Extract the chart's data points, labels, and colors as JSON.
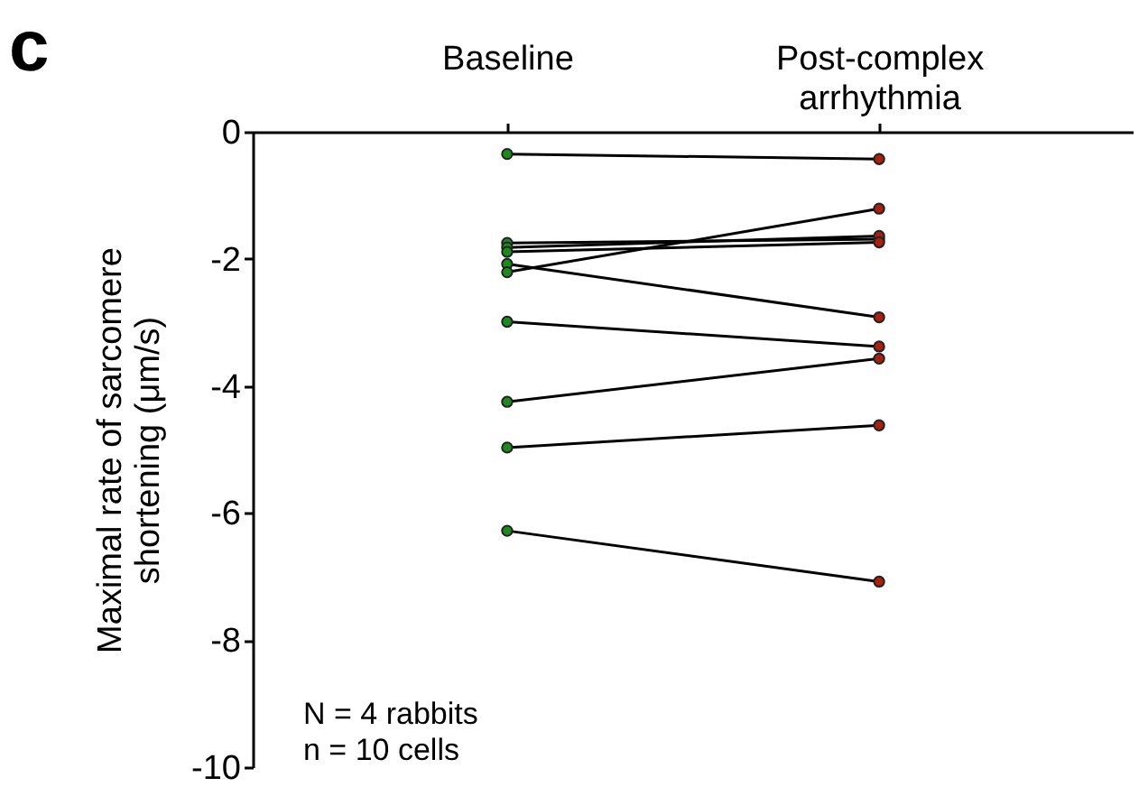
{
  "chart_data": {
    "type": "line",
    "title": "c",
    "ylabel": "Maximal rate of sarcomere shortening (μm/s)",
    "categories": [
      "Baseline",
      "Post-complex arrhythmia"
    ],
    "ylim": [
      -10,
      0
    ],
    "yticks": [
      0,
      -2,
      -4,
      -6,
      -8,
      -10
    ],
    "grid": false,
    "marker": "circle",
    "annotations": [
      "N = 4 rabbits",
      "n = 10 cells"
    ],
    "series": [
      {
        "color": "#000000",
        "colors": [
          "#1e8a1e",
          "#a8200e"
        ],
        "values": [
          -0.35,
          -0.43
        ]
      },
      {
        "color": "#000000",
        "colors": [
          "#1e8a1e",
          "#a8200e"
        ],
        "values": [
          -1.75,
          -1.69
        ]
      },
      {
        "color": "#000000",
        "colors": [
          "#1e8a1e",
          "#a8200e"
        ],
        "values": [
          -1.82,
          -1.64
        ]
      },
      {
        "color": "#000000",
        "colors": [
          "#1e8a1e",
          "#a8200e"
        ],
        "values": [
          -1.89,
          -1.74
        ]
      },
      {
        "color": "#000000",
        "colors": [
          "#1e8a1e",
          "#a8200e"
        ],
        "values": [
          -2.08,
          -2.92
        ]
      },
      {
        "color": "#000000",
        "colors": [
          "#1e8a1e",
          "#a8200e"
        ],
        "values": [
          -2.21,
          -1.21
        ]
      },
      {
        "color": "#000000",
        "colors": [
          "#1e8a1e",
          "#a8200e"
        ],
        "values": [
          -2.99,
          -3.38
        ]
      },
      {
        "color": "#000000",
        "colors": [
          "#1e8a1e",
          "#a8200e"
        ],
        "values": [
          -4.25,
          -3.57
        ]
      },
      {
        "color": "#000000",
        "colors": [
          "#1e8a1e",
          "#a8200e"
        ],
        "values": [
          -4.97,
          -4.62
        ]
      },
      {
        "color": "#000000",
        "colors": [
          "#1e8a1e",
          "#a8200e"
        ],
        "values": [
          -6.28,
          -7.08
        ]
      }
    ]
  }
}
